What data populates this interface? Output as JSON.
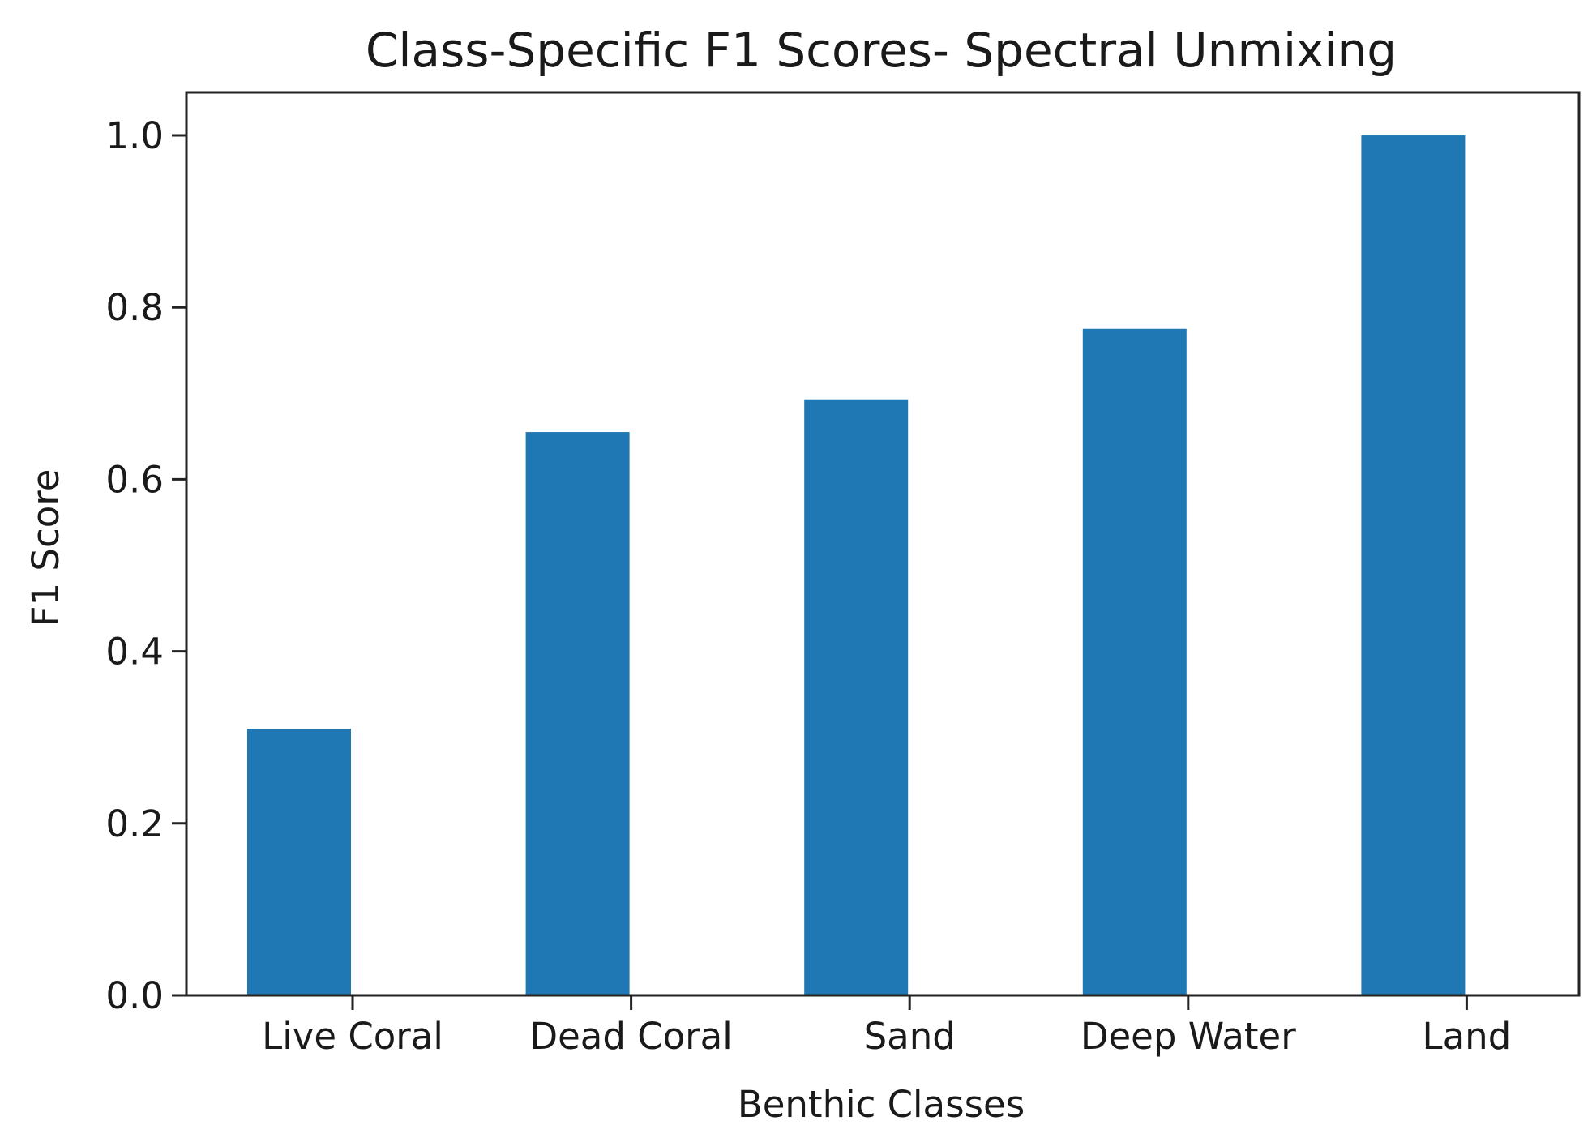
{
  "chart_data": {
    "type": "bar",
    "title": "Class-Specific F1 Scores- Spectral Unmixing",
    "xlabel": "Benthic Classes",
    "ylabel": "F1 Score",
    "categories": [
      "Live Coral",
      "Dead Coral",
      "Sand",
      "Deep Water",
      "Land"
    ],
    "values": [
      0.31,
      0.655,
      0.693,
      0.775,
      1.0
    ],
    "ylim": [
      0,
      1.05
    ],
    "yticks": [
      0.0,
      0.2,
      0.4,
      0.6,
      0.8,
      1.0
    ],
    "ytick_labels": [
      "0.0",
      "0.2",
      "0.4",
      "0.6",
      "0.8",
      "1.0"
    ],
    "grid": false,
    "bar_color": "#1f77b4"
  }
}
